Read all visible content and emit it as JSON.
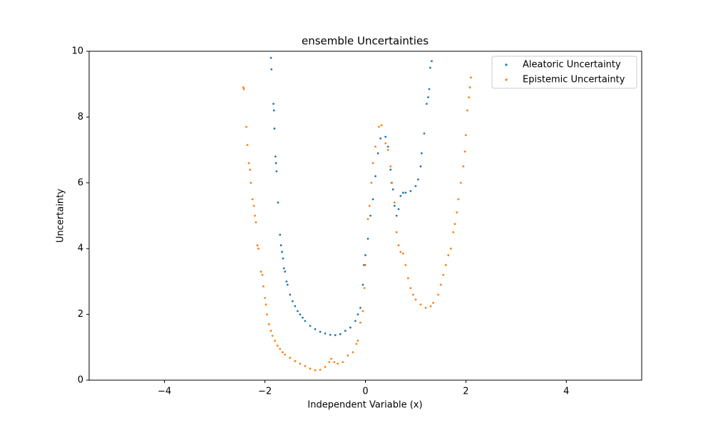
{
  "chart_data": {
    "type": "scatter",
    "title": "ensemble Uncertainties",
    "x_label": "Independent Variable (x)",
    "y_label": "Uncertainty",
    "xlim": [
      -5.5,
      5.5
    ],
    "ylim": [
      0,
      10
    ],
    "xticks": [
      {
        "value": -4,
        "label": "−4"
      },
      {
        "value": -2,
        "label": "−2"
      },
      0,
      2,
      4
    ],
    "yticks": [
      0,
      2,
      4,
      6,
      8,
      10
    ],
    "legend": "upper right",
    "series": [
      {
        "name": "Aleatoric Uncertainty",
        "color": "#1f77b4",
        "x": [
          -1.88,
          -1.87,
          -1.83,
          -1.82,
          -1.81,
          -1.79,
          -1.78,
          -1.77,
          -1.74,
          -1.7,
          -1.68,
          -1.66,
          -1.64,
          -1.62,
          -1.6,
          -1.57,
          -1.55,
          -1.5,
          -1.45,
          -1.4,
          -1.35,
          -1.3,
          -1.25,
          -1.2,
          -1.1,
          -1.0,
          -0.9,
          -0.8,
          -0.7,
          -0.6,
          -0.5,
          -0.4,
          -0.3,
          -0.2,
          -0.15,
          -0.1,
          -0.05,
          -0.03,
          0.0,
          0.05,
          0.1,
          0.15,
          0.2,
          0.25,
          0.3,
          0.4,
          0.45,
          0.5,
          0.52,
          0.55,
          0.58,
          0.62,
          0.66,
          0.7,
          0.75,
          0.8,
          0.9,
          1.0,
          1.05,
          1.1,
          1.12,
          1.17,
          1.22,
          1.25,
          1.27,
          1.29,
          1.32
        ],
        "values": [
          9.8,
          9.45,
          8.4,
          8.2,
          7.65,
          6.8,
          6.6,
          6.35,
          5.4,
          4.42,
          4.1,
          3.9,
          3.7,
          3.4,
          3.3,
          3.0,
          2.9,
          2.6,
          2.4,
          2.25,
          2.1,
          2.0,
          1.9,
          1.8,
          1.65,
          1.55,
          1.47,
          1.42,
          1.38,
          1.37,
          1.4,
          1.5,
          1.6,
          1.8,
          2.0,
          2.2,
          2.9,
          3.5,
          3.8,
          4.3,
          5.0,
          5.5,
          6.2,
          6.9,
          7.35,
          7.4,
          7.1,
          6.4,
          6.0,
          5.8,
          5.3,
          5.0,
          5.2,
          5.6,
          5.7,
          5.7,
          5.75,
          5.9,
          6.1,
          6.5,
          6.9,
          7.5,
          8.4,
          8.6,
          8.85,
          9.5,
          9.7
        ]
      },
      {
        "name": "Epistemic Uncertainty",
        "color": "#ff7f0e",
        "x": [
          -2.43,
          -2.42,
          -2.37,
          -2.35,
          -2.32,
          -2.3,
          -2.28,
          -2.25,
          -2.22,
          -2.2,
          -2.18,
          -2.15,
          -2.13,
          -2.08,
          -2.05,
          -2.03,
          -2.0,
          -1.98,
          -1.96,
          -1.92,
          -1.88,
          -1.85,
          -1.8,
          -1.75,
          -1.7,
          -1.65,
          -1.6,
          -1.5,
          -1.4,
          -1.3,
          -1.2,
          -1.1,
          -1.0,
          -0.9,
          -0.8,
          -0.72,
          -0.68,
          -0.62,
          -0.55,
          -0.45,
          -0.35,
          -0.25,
          -0.18,
          -0.15,
          -0.1,
          -0.05,
          -0.02,
          0.0,
          0.05,
          0.08,
          0.12,
          0.15,
          0.2,
          0.27,
          0.32,
          0.4,
          0.45,
          0.5,
          0.53,
          0.58,
          0.62,
          0.66,
          0.7,
          0.75,
          0.8,
          0.85,
          0.9,
          0.95,
          1.0,
          1.1,
          1.2,
          1.3,
          1.35,
          1.45,
          1.5,
          1.55,
          1.6,
          1.65,
          1.7,
          1.75,
          1.78,
          1.82,
          1.85,
          1.9,
          1.95,
          1.98,
          2.0,
          2.03,
          2.06,
          2.08,
          2.1
        ],
        "values": [
          8.9,
          8.85,
          7.7,
          7.15,
          6.6,
          6.4,
          6.0,
          5.5,
          5.3,
          5.0,
          4.8,
          4.1,
          4.0,
          3.3,
          3.2,
          2.85,
          2.5,
          2.3,
          2.0,
          1.7,
          1.5,
          1.35,
          1.2,
          1.05,
          0.95,
          0.85,
          0.78,
          0.68,
          0.58,
          0.5,
          0.43,
          0.35,
          0.3,
          0.32,
          0.4,
          0.55,
          0.65,
          0.55,
          0.5,
          0.55,
          0.75,
          0.85,
          1.1,
          1.2,
          1.75,
          2.1,
          2.8,
          3.5,
          4.9,
          5.3,
          6.0,
          6.6,
          7.1,
          7.7,
          7.75,
          7.2,
          7.0,
          6.5,
          6.0,
          5.4,
          4.5,
          4.1,
          3.9,
          3.85,
          3.5,
          3.1,
          2.8,
          2.6,
          2.45,
          2.3,
          2.2,
          2.25,
          2.35,
          2.6,
          2.9,
          3.2,
          3.5,
          3.8,
          4.0,
          4.5,
          4.75,
          5.1,
          5.5,
          6.0,
          6.5,
          6.95,
          7.45,
          8.2,
          8.6,
          8.9,
          9.2
        ]
      }
    ]
  }
}
